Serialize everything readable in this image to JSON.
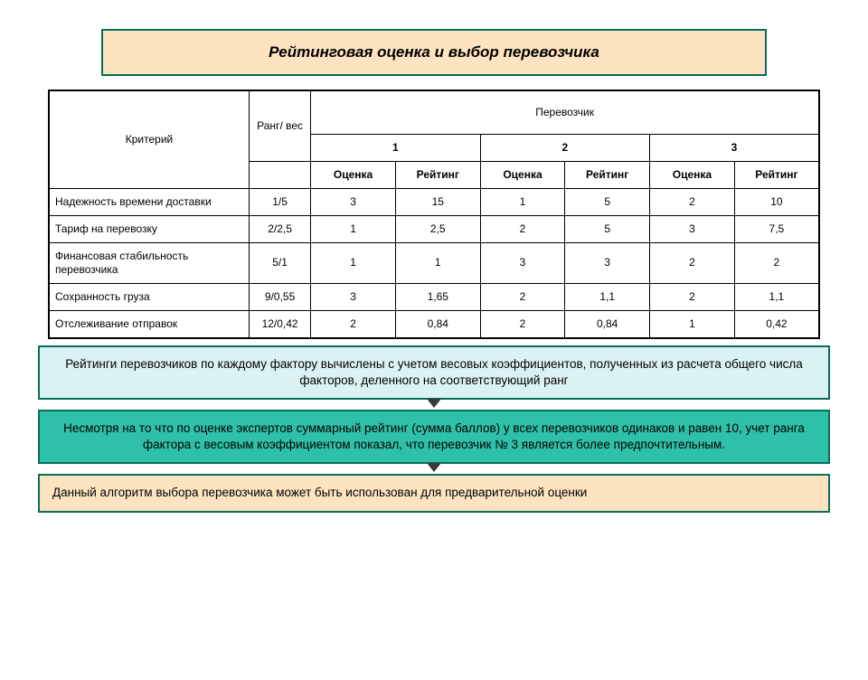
{
  "title": "Рейтинговая оценка и выбор перевозчика",
  "table": {
    "head": {
      "criterion": "Критерий",
      "rank": "Ранг/ вес",
      "carrier": "Перевозчик",
      "c1": "1",
      "c2": "2",
      "c3": "3",
      "score": "Оценка",
      "rating": "Рейтинг"
    },
    "rows": [
      {
        "crit": "Надежность времени доставки",
        "rank": "1/5",
        "s1": "3",
        "r1": "15",
        "s2": "1",
        "r2": "5",
        "s3": "2",
        "r3": "10"
      },
      {
        "crit": "Тариф на перевозку",
        "rank": "2/2,5",
        "s1": "1",
        "r1": "2,5",
        "s2": "2",
        "r2": "5",
        "s3": "3",
        "r3": "7,5"
      },
      {
        "crit": "Финансовая стабильность перевозчика",
        "rank": "5/1",
        "s1": "1",
        "r1": "1",
        "s2": "3",
        "r2": "3",
        "s3": "2",
        "r3": "2"
      },
      {
        "crit": "Сохранность груза",
        "rank": "9/0,55",
        "s1": "3",
        "r1": "1,65",
        "s2": "2",
        "r2": "1,1",
        "s3": "2",
        "r3": "1,1"
      },
      {
        "crit": "Отслеживание отправок",
        "rank": "12/0,42",
        "s1": "2",
        "r1": "0,84",
        "s2": "2",
        "r2": "0,84",
        "s3": "1",
        "r3": "0,42"
      }
    ]
  },
  "box1": "Рейтинги перевозчиков по каждому фактору вычислены с учетом весовых коэффициентов, полученных из расчета общего числа факторов, деленного на соответствующий ранг",
  "box2": "Несмотря на то что по оценке экспертов суммарный рейтинг (сумма баллов) у всех перевозчиков одинаков и равен 10, учет ранга фактора с весовым коэффициентом показал, что перевозчик  № 3 является более предпочтительным.",
  "box3": "Данный алгоритм выбора перевозчика может быть использован для предварительной оценки",
  "colors": {
    "title_bg": "#fde3c0",
    "border": "#086e5a",
    "box1_bg": "#daf3f2",
    "box2_bg": "#2ec1a7",
    "box3_bg": "#fde3c0",
    "text": "#000000",
    "page_bg": "#ffffff",
    "arrow": "#3a3a3a"
  }
}
